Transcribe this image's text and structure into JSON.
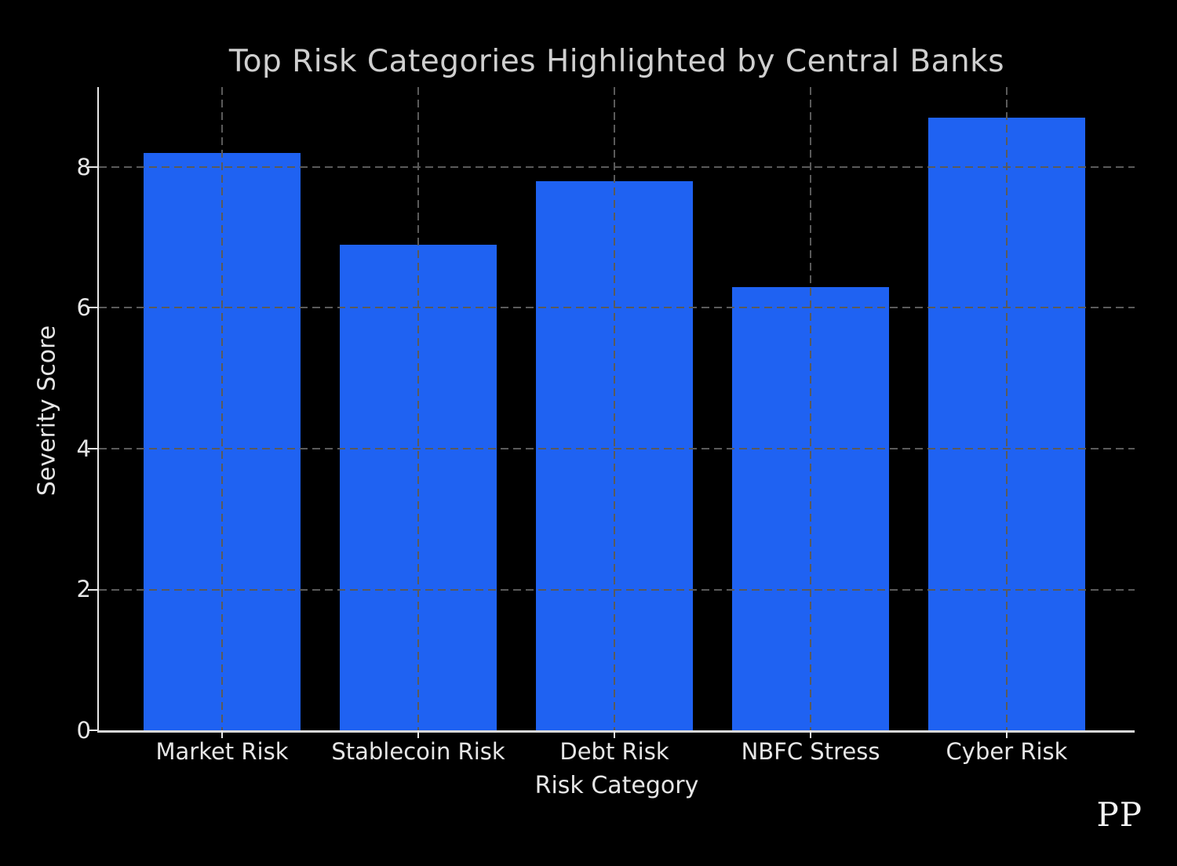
{
  "page": {
    "background": "#000000",
    "watermark": "PP"
  },
  "chart_data": {
    "type": "bar",
    "title": "Top Risk Categories Highlighted by Central Banks",
    "xlabel": "Risk Category",
    "ylabel": "Severity Score",
    "categories": [
      "Market Risk",
      "Stablecoin Risk",
      "Debt Risk",
      "NBFC Stress",
      "Cyber Risk"
    ],
    "values": [
      8.2,
      6.9,
      7.8,
      6.3,
      8.7
    ],
    "yticks": [
      0,
      2,
      4,
      6,
      8
    ],
    "ylim": [
      0,
      9.135
    ],
    "grid": "dashed, both axes, drawn above bars",
    "legend": "none",
    "colors": {
      "bar": "#1f62f2",
      "grid": "#5a5a5a",
      "title_text": "#cfcfcf",
      "tick_text": "#e6e6e6",
      "spine": "#e0e0e0",
      "background": "#000000",
      "watermark_text": "#f2f2f2"
    }
  }
}
